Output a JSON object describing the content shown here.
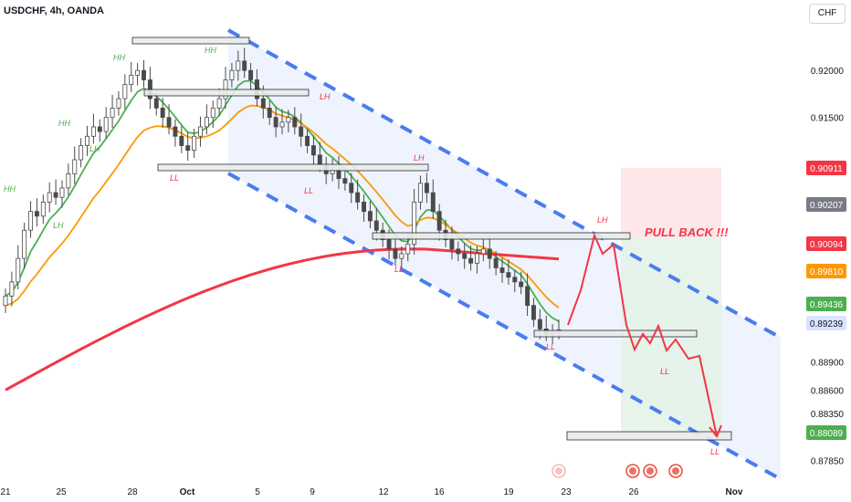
{
  "header": {
    "symbol": "USDCHF, 4h, OANDA",
    "currency": "CHF"
  },
  "chart_data": {
    "type": "candlestick",
    "symbol": "USDCHF",
    "timeframe": "4h",
    "broker": "OANDA",
    "ylim": [
      0.877,
      0.924
    ],
    "yticks": [
      0.8785,
      0.8835,
      0.886,
      0.889,
      0.915,
      0.92
    ],
    "xticks": [
      {
        "label": "21",
        "px": 6
      },
      {
        "label": "25",
        "px": 67
      },
      {
        "label": "28",
        "px": 145
      },
      {
        "label": "Oct",
        "px": 205
      },
      {
        "label": "5",
        "px": 282
      },
      {
        "label": "9",
        "px": 342
      },
      {
        "label": "12",
        "px": 420
      },
      {
        "label": "16",
        "px": 481
      },
      {
        "label": "19",
        "px": 557
      },
      {
        "label": "23",
        "px": 620
      },
      {
        "label": "26",
        "px": 694
      },
      {
        "label": "Nov",
        "px": 804
      }
    ],
    "price_labels": [
      {
        "value": "0.90911",
        "color": "#f23645"
      },
      {
        "value": "0.90207",
        "color": "#787b86"
      },
      {
        "value": "0.90094",
        "color": "#f23645"
      },
      {
        "value": "0.89810",
        "color": "#ff9800"
      },
      {
        "value": "0.89436",
        "color": "#4caf50"
      },
      {
        "value": "0.89239",
        "color": "#dbe3ff",
        "text_color": "#131722"
      },
      {
        "value": "0.88089",
        "color": "#4caf50"
      }
    ],
    "closes": [
      0.896,
      0.8975,
      0.9,
      0.903,
      0.905,
      0.9045,
      0.906,
      0.907,
      0.9065,
      0.9075,
      0.909,
      0.9105,
      0.912,
      0.913,
      0.914,
      0.9135,
      0.915,
      0.916,
      0.917,
      0.9185,
      0.9195,
      0.92,
      0.919,
      0.917,
      0.916,
      0.915,
      0.914,
      0.913,
      0.912,
      0.9115,
      0.913,
      0.914,
      0.915,
      0.916,
      0.917,
      0.919,
      0.92,
      0.921,
      0.92,
      0.919,
      0.917,
      0.916,
      0.915,
      0.914,
      0.9145,
      0.915,
      0.914,
      0.913,
      0.912,
      0.911,
      0.91,
      0.909,
      0.9095,
      0.9085,
      0.908,
      0.907,
      0.906,
      0.905,
      0.904,
      0.903,
      0.902,
      0.901,
      0.9,
      0.9005,
      0.9015,
      0.906,
      0.908,
      0.907,
      0.905,
      0.903,
      0.902,
      0.901,
      0.9005,
      0.9,
      0.8995,
      0.9005,
      0.901,
      0.9,
      0.899,
      0.8985,
      0.898,
      0.8975,
      0.897,
      0.895,
      0.8935,
      0.8925,
      0.892,
      0.8922,
      0.8924
    ],
    "ema_fast_color": "#4caf50",
    "ema_mid_color": "#ff9800",
    "ema_slow_color": "#f23645",
    "annotations": {
      "labels": [
        {
          "text": "HH",
          "color": "#4caf50"
        },
        {
          "text": "HH",
          "color": "#4caf50"
        },
        {
          "text": "HH",
          "color": "#4caf50"
        },
        {
          "text": "HH",
          "color": "#4caf50"
        },
        {
          "text": "LH",
          "color": "#4caf50"
        },
        {
          "text": "LH",
          "color": "#4caf50"
        },
        {
          "text": "LL",
          "color": "#f23645"
        },
        {
          "text": "LH",
          "color": "#f23645"
        },
        {
          "text": "LL",
          "color": "#f23645"
        },
        {
          "text": "LH",
          "color": "#f23645"
        },
        {
          "text": "LL",
          "color": "#f23645"
        },
        {
          "text": "LH",
          "color": "#f23645"
        },
        {
          "text": "LL",
          "color": "#f23645"
        },
        {
          "text": "LL",
          "color": "#f23645"
        },
        {
          "text": "LL",
          "color": "#f23645"
        }
      ],
      "callout": "PULL BACK !!!",
      "callout_color": "#f23645",
      "channel_color": "#4a7cf0",
      "projection_color": "#f23645"
    }
  }
}
